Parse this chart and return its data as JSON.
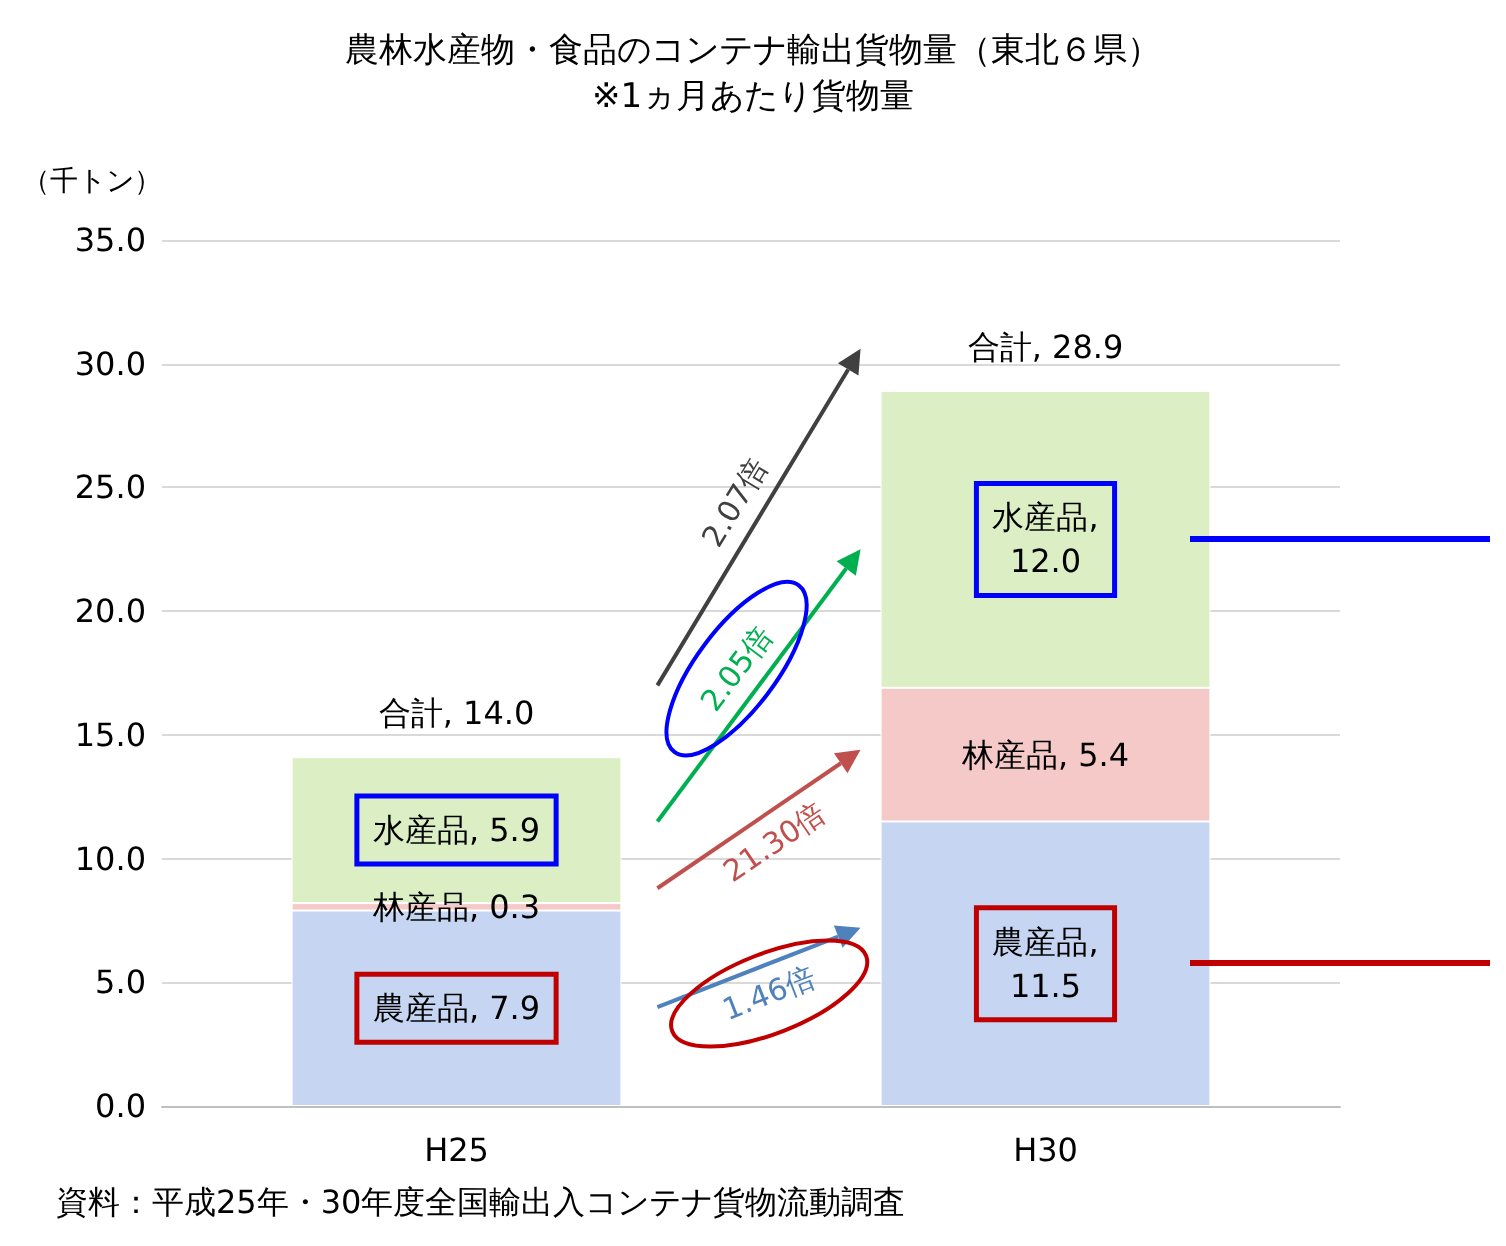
{
  "chart_data": {
    "type": "bar",
    "title": "農林水産物・食品のコンテナ輸出貨物量（東北６県）",
    "subtitle": "※1ヵ月あたり貨物量",
    "ylabel": "（千トン）",
    "categories": [
      "H25",
      "H30"
    ],
    "stacked": true,
    "series": [
      {
        "color": "#c6d6f2",
        "values": [
          7.9,
          11.5
        ],
        "value_labels": [
          "農産品, 7.9",
          "農産品, 11.5"
        ]
      },
      {
        "color": "#f5c9c8",
        "values": [
          0.3,
          5.4
        ],
        "value_labels": [
          "林産品, 0.3",
          "林産品, 5.4"
        ]
      },
      {
        "color": "#dcefc4",
        "values": [
          5.9,
          12.0
        ],
        "value_labels": [
          "水産品, 5.9",
          "水産品, 12.0"
        ]
      }
    ],
    "totals": [
      "合計, 14.0",
      "合計, 28.9"
    ],
    "ylim": [
      0,
      35
    ],
    "yticks": [
      {
        "value": 0,
        "label": "0.0"
      },
      {
        "value": 5,
        "label": "5.0"
      },
      {
        "value": 10,
        "label": "10.0"
      },
      {
        "value": 15,
        "label": "15.0"
      },
      {
        "value": 20,
        "label": "20.0"
      },
      {
        "value": 25,
        "label": "25.0"
      },
      {
        "value": 30,
        "label": "30.0"
      },
      {
        "value": 35,
        "label": "35.0"
      }
    ],
    "grid": "y",
    "annotations": [
      "2.07倍",
      "2.05倍",
      "21.30倍",
      "1.46倍",
      "資料：平成25年・30年度全国輸出入コンテナ貨物流動調査"
    ]
  }
}
